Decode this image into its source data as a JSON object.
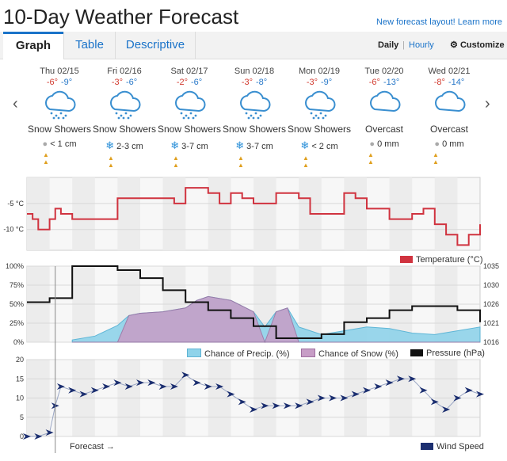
{
  "header": {
    "title": "10-Day Weather Forecast",
    "new_layout": "New forecast layout! Learn more"
  },
  "tabs": [
    {
      "label": "Graph"
    },
    {
      "label": "Table"
    },
    {
      "label": "Descriptive"
    }
  ],
  "view_links": {
    "daily": "Daily",
    "hourly": "Hourly",
    "customize": "Customize"
  },
  "days": [
    {
      "date": "Thu 02/15",
      "hi": "-6°",
      "lo": "-9°",
      "condition": "Snow Showers",
      "precip": "< 1 cm",
      "icon": "snow-cloud-icon",
      "precip_icon": "raindrop-icon"
    },
    {
      "date": "Fri 02/16",
      "hi": "-3°",
      "lo": "-6°",
      "condition": "Snow Showers",
      "precip": "2-3 cm",
      "icon": "snow-cloud-icon",
      "precip_icon": "snowflake-icon"
    },
    {
      "date": "Sat 02/17",
      "hi": "-2°",
      "lo": "-6°",
      "condition": "Snow Showers",
      "precip": "3-7 cm",
      "icon": "snow-cloud-icon",
      "precip_icon": "snowflake-icon"
    },
    {
      "date": "Sun 02/18",
      "hi": "-3°",
      "lo": "-8°",
      "condition": "Snow Showers",
      "precip": "3-7 cm",
      "icon": "snow-cloud-icon",
      "precip_icon": "snowflake-icon"
    },
    {
      "date": "Mon 02/19",
      "hi": "-3°",
      "lo": "-9°",
      "condition": "Snow Showers",
      "precip": "< 2 cm",
      "icon": "snow-cloud-icon",
      "precip_icon": "snowflake-icon"
    },
    {
      "date": "Tue 02/20",
      "hi": "-6°",
      "lo": "-13°",
      "condition": "Overcast",
      "precip": "0 mm",
      "icon": "cloud-icon",
      "precip_icon": "raindrop-icon"
    },
    {
      "date": "Wed 02/21",
      "hi": "-8°",
      "lo": "-14°",
      "condition": "Overcast",
      "precip": "0 mm",
      "icon": "cloud-icon",
      "precip_icon": "raindrop-icon"
    }
  ],
  "colors": {
    "temperature": "#d0333f",
    "precip": "#8fd3ea",
    "snow": "#c79dc6",
    "pressure": "#111111",
    "wind": "#1c2f70",
    "accent": "#1a73c9"
  },
  "legend": {
    "temperature": "Temperature (°C)",
    "precip": "Chance of Precip. (%)",
    "snow": "Chance of Snow (%)",
    "pressure": "Pressure (hPa)",
    "wind": "Wind Speed"
  },
  "forecast_label": "Forecast →",
  "chart_data": [
    {
      "type": "line",
      "name": "temperature",
      "x_hours": [
        0,
        3,
        6,
        9,
        12,
        15,
        18,
        21,
        24,
        30,
        36,
        42,
        48,
        54,
        60,
        66,
        72,
        78,
        84,
        90,
        96,
        102,
        108,
        114,
        120,
        126,
        132,
        138,
        144,
        150,
        156,
        162,
        168,
        174,
        180,
        186,
        192,
        198,
        204,
        210,
        216,
        222,
        228,
        234,
        240
      ],
      "y": [
        -7,
        -8,
        -10,
        -10,
        -8,
        -6,
        -7,
        -7,
        -8,
        -8,
        -8,
        -8,
        -4,
        -4,
        -4,
        -4,
        -4,
        -5,
        -2,
        -2,
        -3,
        -5,
        -3,
        -4,
        -5,
        -5,
        -3,
        -3,
        -4,
        -7,
        -7,
        -7,
        -3,
        -4,
        -6,
        -6,
        -8,
        -8,
        -7,
        -6,
        -9,
        -11,
        -13,
        -11,
        -9
      ],
      "yticks": [
        "-5 °C",
        "-10 °C"
      ],
      "ylim": [
        -14,
        0
      ]
    },
    {
      "type": "area",
      "name": "precip_pressure",
      "yticks_left": [
        "100%",
        "75%",
        "50%",
        "25%",
        "0%"
      ],
      "yticks_right": [
        "1035",
        "1030",
        "1026",
        "1021",
        "1016"
      ],
      "pressure_ylim": [
        1016,
        1035
      ],
      "pressure_hours": [
        0,
        12,
        24,
        36,
        48,
        60,
        72,
        84,
        96,
        108,
        120,
        132,
        144,
        156,
        168,
        180,
        192,
        204,
        216,
        228,
        240
      ],
      "pressure": [
        1026,
        1027,
        1035,
        1035,
        1034,
        1032,
        1029,
        1026,
        1024,
        1022,
        1020,
        1017,
        1017,
        1018,
        1021,
        1022,
        1024,
        1025,
        1025,
        1024,
        1021
      ],
      "precip_hours": [
        24,
        36,
        48,
        54,
        60,
        72,
        84,
        90,
        96,
        108,
        120,
        126,
        132,
        138,
        144,
        156,
        168,
        180,
        192,
        204,
        216,
        228,
        240
      ],
      "precip": [
        3,
        8,
        22,
        35,
        38,
        40,
        45,
        55,
        60,
        55,
        40,
        20,
        40,
        45,
        20,
        10,
        15,
        20,
        18,
        12,
        10,
        15,
        20
      ],
      "snow": [
        0,
        0,
        0,
        35,
        38,
        40,
        45,
        55,
        60,
        55,
        40,
        0,
        40,
        45,
        0,
        0,
        0,
        0,
        0,
        0,
        0,
        0,
        0
      ]
    },
    {
      "type": "line",
      "name": "wind_speed",
      "x_hours": [
        0,
        6,
        12,
        15,
        18,
        24,
        30,
        36,
        42,
        48,
        54,
        60,
        66,
        72,
        78,
        84,
        90,
        96,
        102,
        108,
        114,
        120,
        126,
        132,
        138,
        144,
        150,
        156,
        162,
        168,
        174,
        180,
        186,
        192,
        198,
        204,
        210,
        216,
        222,
        228,
        234,
        240
      ],
      "y": [
        0,
        0,
        1,
        8,
        13,
        12,
        11,
        12,
        13,
        14,
        13,
        14,
        14,
        13,
        13,
        16,
        14,
        13,
        13,
        11,
        9,
        7,
        8,
        8,
        8,
        8,
        9,
        10,
        10,
        10,
        11,
        12,
        13,
        14,
        15,
        15,
        12,
        9,
        7,
        10,
        12,
        11
      ],
      "yticks": [
        "20",
        "15",
        "10",
        "5",
        "0"
      ],
      "ylim": [
        0,
        20
      ]
    }
  ]
}
